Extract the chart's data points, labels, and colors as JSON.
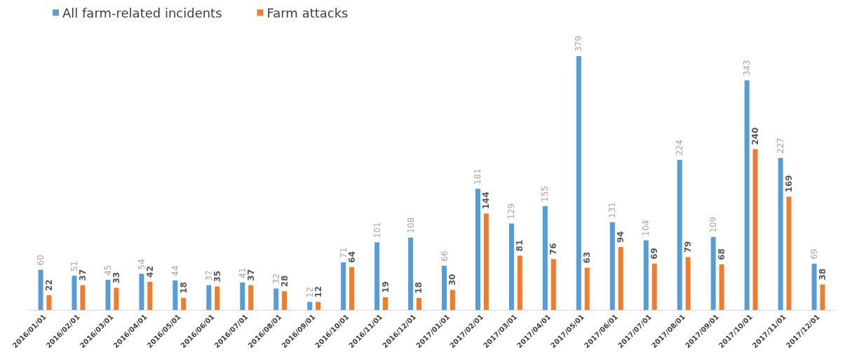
{
  "chart_data": {
    "type": "bar",
    "categories": [
      "2016/01/01",
      "2016/02/01",
      "2016/03/01",
      "2016/04/01",
      "2016/05/01",
      "2016/06/01",
      "2016/07/01",
      "2016/08/01",
      "2016/09/01",
      "2016/10/01",
      "2016/11/01",
      "2016/12/01",
      "2017/01/01",
      "2017/02/01",
      "2017/03/01",
      "2017/04/01",
      "2017/05/01",
      "2017/06/01",
      "2017/07/01",
      "2017/08/01",
      "2017/09/01",
      "2017/10/01",
      "2017/11/01",
      "2017/12/01"
    ],
    "series": [
      {
        "name": "All farm-related incidents",
        "color": "#5b9bd5",
        "values": [
          60,
          51,
          45,
          54,
          44,
          37,
          41,
          32,
          12,
          71,
          101,
          108,
          66,
          181,
          129,
          155,
          379,
          131,
          104,
          224,
          109,
          343,
          227,
          69
        ]
      },
      {
        "name": "Farm attacks",
        "color": "#ed7d31",
        "values": [
          22,
          37,
          33,
          42,
          18,
          35,
          37,
          28,
          12,
          64,
          19,
          18,
          30,
          144,
          81,
          76,
          63,
          94,
          69,
          79,
          68,
          240,
          169,
          38
        ]
      }
    ],
    "data_labels": true,
    "legend": "top left"
  }
}
